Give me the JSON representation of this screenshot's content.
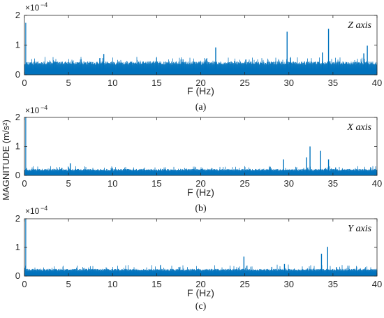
{
  "colors": {
    "series": "#0072BD",
    "axis": "#262626",
    "background": "#ffffff"
  },
  "shared_ylabel": "MAGNITUDE (m/s²)",
  "chart_data": [
    {
      "type": "line",
      "panel": "a",
      "caption": "(a)",
      "tag": "Z axis",
      "xlabel": "F (Hz)",
      "y_multiplier_base": "×10",
      "y_multiplier_exp": "−4",
      "xlim": [
        0,
        40
      ],
      "ylim": [
        0,
        2
      ],
      "x_ticks": [
        "0",
        "5",
        "10",
        "15",
        "20",
        "25",
        "30",
        "35",
        "40"
      ],
      "y_ticks": [
        "0",
        "1",
        "2"
      ],
      "noise_floor": 0.45,
      "noise_peak": 0.6,
      "noise_seed": 11,
      "onset_value": 1.75,
      "series": [
        {
          "peaks": [
            {
              "x": 21.7,
              "y": 0.92
            },
            {
              "x": 29.8,
              "y": 1.45
            },
            {
              "x": 34.5,
              "y": 1.55
            },
            {
              "x": 33.8,
              "y": 0.75
            },
            {
              "x": 38.9,
              "y": 0.98
            },
            {
              "x": 38.5,
              "y": 0.72
            },
            {
              "x": 9.0,
              "y": 0.7
            }
          ]
        }
      ]
    },
    {
      "type": "line",
      "panel": "b",
      "caption": "(b)",
      "tag": "X axis",
      "xlabel": "F (Hz)",
      "y_multiplier_base": "×10",
      "y_multiplier_exp": "−4",
      "xlim": [
        0,
        40
      ],
      "ylim": [
        0,
        2
      ],
      "x_ticks": [
        "0",
        "5",
        "10",
        "15",
        "20",
        "25",
        "30",
        "35",
        "40"
      ],
      "y_ticks": [
        "0",
        "1",
        "2"
      ],
      "noise_floor": 0.22,
      "noise_peak": 0.32,
      "noise_seed": 23,
      "onset_value": 2.0,
      "series": [
        {
          "peaks": [
            {
              "x": 5.2,
              "y": 0.42
            },
            {
              "x": 29.4,
              "y": 0.55
            },
            {
              "x": 32.0,
              "y": 0.62
            },
            {
              "x": 32.4,
              "y": 1.0
            },
            {
              "x": 33.6,
              "y": 0.85
            },
            {
              "x": 34.5,
              "y": 0.55
            }
          ]
        }
      ]
    },
    {
      "type": "line",
      "panel": "c",
      "caption": "(c)",
      "tag": "Y axis",
      "xlabel": "F (Hz)",
      "y_multiplier_base": "×10",
      "y_multiplier_exp": "−4",
      "xlim": [
        0,
        40
      ],
      "ylim": [
        0,
        2
      ],
      "x_ticks": [
        "0",
        "5",
        "10",
        "15",
        "20",
        "25",
        "30",
        "35",
        "40"
      ],
      "y_ticks": [
        "0",
        "1",
        "2"
      ],
      "noise_floor": 0.25,
      "noise_peak": 0.4,
      "noise_seed": 37,
      "onset_value": 2.0,
      "series": [
        {
          "peaks": [
            {
              "x": 24.9,
              "y": 0.68
            },
            {
              "x": 33.7,
              "y": 0.78
            },
            {
              "x": 34.4,
              "y": 1.02
            },
            {
              "x": 29.5,
              "y": 0.42
            }
          ]
        }
      ]
    }
  ]
}
